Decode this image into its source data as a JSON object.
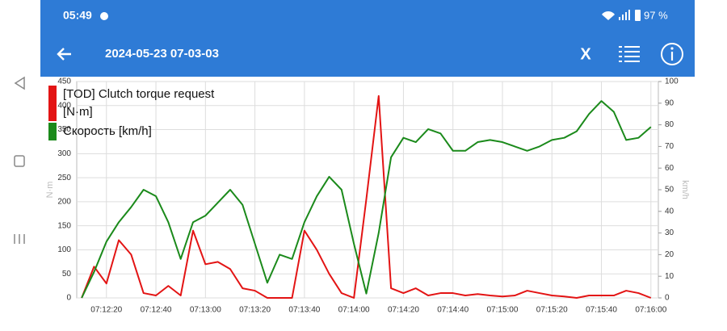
{
  "status_bar": {
    "time": "05:49",
    "battery": "97 %"
  },
  "app_bar": {
    "title": "2024-05-23 07-03-03",
    "close": "X"
  },
  "chart_data": {
    "type": "line",
    "x": [
      "07:12:10",
      "07:12:15",
      "07:12:20",
      "07:12:25",
      "07:12:30",
      "07:12:35",
      "07:12:40",
      "07:12:45",
      "07:12:50",
      "07:12:55",
      "07:13:00",
      "07:13:05",
      "07:13:10",
      "07:13:15",
      "07:13:20",
      "07:13:25",
      "07:13:30",
      "07:13:35",
      "07:13:40",
      "07:13:45",
      "07:13:50",
      "07:13:55",
      "07:14:00",
      "07:14:05",
      "07:14:10",
      "07:14:15",
      "07:14:20",
      "07:14:25",
      "07:14:30",
      "07:14:35",
      "07:14:40",
      "07:14:45",
      "07:14:50",
      "07:14:55",
      "07:15:00",
      "07:15:05",
      "07:15:10",
      "07:15:15",
      "07:15:20",
      "07:15:25",
      "07:15:30",
      "07:15:35",
      "07:15:40",
      "07:15:45",
      "07:15:50",
      "07:15:55",
      "07:16:00"
    ],
    "series": [
      {
        "name": "[TOD] Clutch torque request [N·m]",
        "color": "#e31414",
        "axis": "y",
        "values": [
          0,
          65,
          30,
          120,
          90,
          10,
          5,
          25,
          5,
          140,
          70,
          75,
          60,
          20,
          15,
          0,
          0,
          0,
          140,
          100,
          50,
          10,
          0,
          205,
          420,
          20,
          10,
          20,
          5,
          10,
          10,
          5,
          8,
          5,
          3,
          5,
          15,
          10,
          5,
          3,
          0,
          5,
          5,
          5,
          15,
          10,
          0
        ]
      },
      {
        "name": "Скорость [km/h]",
        "color": "#1b8a1b",
        "axis": "y2",
        "values": [
          0,
          12,
          26,
          35,
          42,
          50,
          47,
          35,
          18,
          35,
          38,
          44,
          50,
          43,
          25,
          7,
          20,
          18,
          35,
          47,
          56,
          50,
          25,
          2,
          30,
          65,
          74,
          72,
          78,
          76,
          68,
          68,
          72,
          73,
          72,
          70,
          68,
          70,
          73,
          74,
          77,
          85,
          91,
          86,
          73,
          74,
          79
        ]
      }
    ],
    "y_label": "N·m",
    "y2_label": "km/h",
    "xlim": [
      "07:12:08",
      "07:16:03"
    ],
    "xticks": [
      "07:12:20",
      "07:12:40",
      "07:13:00",
      "07:13:20",
      "07:13:40",
      "07:14:00",
      "07:14:20",
      "07:14:40",
      "07:15:00",
      "07:15:20",
      "07:15:40",
      "07:16:00"
    ],
    "ylim": [
      0,
      450
    ],
    "yticks": [
      0,
      50,
      100,
      150,
      200,
      250,
      300,
      350,
      400,
      450
    ],
    "y2lim": [
      0,
      100
    ],
    "y2ticks": [
      0,
      10,
      20,
      30,
      40,
      50,
      60,
      70,
      80,
      90,
      100
    ],
    "grid": true
  }
}
